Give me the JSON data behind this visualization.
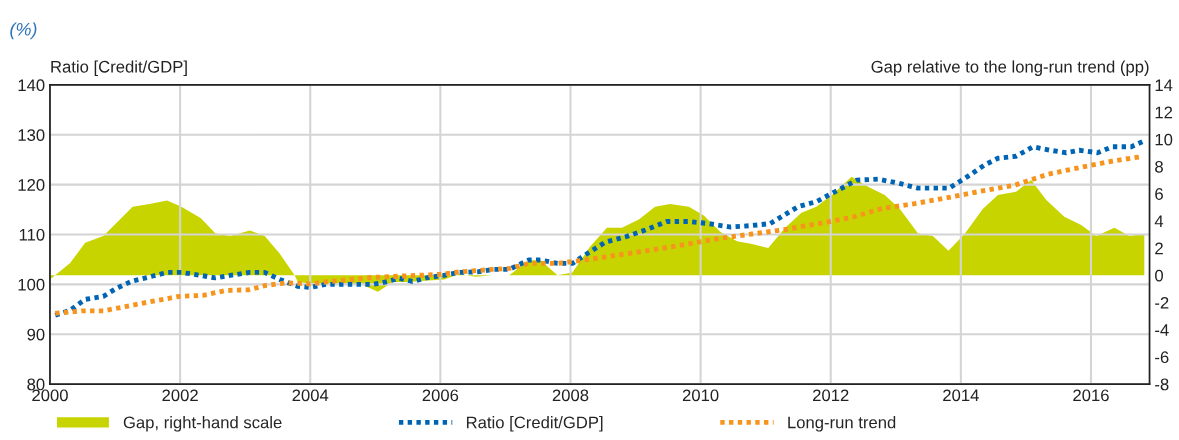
{
  "chart_data": {
    "type": "line",
    "title": "(%)",
    "ylabel": "Ratio [Credit/GDP]",
    "y2label": "Gap relative to the long-run trend (pp)",
    "xlim": [
      2000,
      2016.9
    ],
    "xticks": [
      2000,
      2002,
      2004,
      2006,
      2008,
      2010,
      2012,
      2014,
      2016
    ],
    "ylim": [
      80,
      140
    ],
    "yticks": [
      80,
      90,
      100,
      110,
      120,
      130,
      140
    ],
    "y2lim": [
      -8,
      14
    ],
    "y2ticks": [
      -8,
      -6,
      -4,
      -2,
      0,
      2,
      4,
      6,
      8,
      10,
      12,
      14
    ],
    "grid": true,
    "legend": "bottom",
    "series": [
      {
        "name": "Gap, right-hand scale",
        "type": "area",
        "axis": "y2",
        "color": "#c8d400",
        "x": [
          2000.0,
          2000.31,
          2000.54,
          2000.82,
          2001.27,
          2001.53,
          2001.8,
          2002.02,
          2002.32,
          2002.54,
          2002.77,
          2003.07,
          2003.3,
          2003.53,
          2003.76,
          2003.81,
          2004.0,
          2004.5,
          2004.8,
          2005.04,
          2005.27,
          2005.52,
          2005.75,
          2006.06,
          2006.29,
          2006.54,
          2006.8,
          2007.06,
          2007.36,
          2007.54,
          2007.8,
          2008.03,
          2008.3,
          2008.56,
          2008.79,
          2009.05,
          2009.3,
          2009.53,
          2009.82,
          2010.05,
          2010.3,
          2010.56,
          2010.79,
          2011.04,
          2011.3,
          2011.55,
          2011.78,
          2012.04,
          2012.32,
          2012.58,
          2012.83,
          2013.06,
          2013.34,
          2013.57,
          2013.81,
          2014.06,
          2014.34,
          2014.57,
          2014.85,
          2015.08,
          2015.31,
          2015.59,
          2015.85,
          2016.08,
          2016.36,
          2016.59,
          2016.82
        ],
        "values": [
          -0.3,
          0.9,
          2.4,
          2.9,
          5.05,
          5.25,
          5.5,
          5.05,
          4.2,
          3.1,
          2.9,
          3.3,
          2.9,
          1.6,
          0.0,
          -0.5,
          -0.6,
          -0.6,
          -0.7,
          -1.2,
          -0.5,
          -0.5,
          -0.4,
          -0.3,
          0.1,
          -0.1,
          0.0,
          0.0,
          1.1,
          1.1,
          0.0,
          0.2,
          2.1,
          3.5,
          3.5,
          4.1,
          5.05,
          5.25,
          5.05,
          4.4,
          3.2,
          2.5,
          2.3,
          2.0,
          3.5,
          4.6,
          5.05,
          6.0,
          7.25,
          6.5,
          5.9,
          4.9,
          3.1,
          2.9,
          1.8,
          3.05,
          4.9,
          5.9,
          6.15,
          7.0,
          5.55,
          4.3,
          3.7,
          2.9,
          3.5,
          2.9,
          3.05
        ]
      },
      {
        "name": "Ratio [Credit/GDP]",
        "line_style": "dotted",
        "color": "#0064b4",
        "x": [
          2000.08,
          2000.31,
          2000.54,
          2000.82,
          2001.02,
          2001.27,
          2001.53,
          2001.8,
          2002.02,
          2002.32,
          2002.54,
          2002.77,
          2003.07,
          2003.3,
          2003.53,
          2003.81,
          2004.0,
          2004.24,
          2004.55,
          2004.96,
          2005.1,
          2005.37,
          2005.57,
          2005.82,
          2006.05,
          2006.29,
          2006.57,
          2006.8,
          2007.06,
          2007.36,
          2007.54,
          2007.8,
          2008.03,
          2008.26,
          2008.54,
          2008.84,
          2009.15,
          2009.48,
          2009.82,
          2010.12,
          2010.46,
          2010.79,
          2011.07,
          2011.5,
          2011.78,
          2012.07,
          2012.4,
          2012.73,
          2013.04,
          2013.34,
          2013.82,
          2014.1,
          2014.36,
          2014.57,
          2014.85,
          2015.11,
          2015.37,
          2015.62,
          2015.82,
          2016.1,
          2016.33,
          2016.62,
          2016.79
        ],
        "values": [
          93.8,
          94.8,
          97.0,
          97.6,
          99.2,
          100.7,
          101.5,
          102.4,
          102.4,
          101.8,
          101.3,
          101.8,
          102.4,
          102.4,
          101.0,
          99.6,
          99.4,
          100.0,
          100.0,
          100.0,
          100.3,
          101.2,
          100.6,
          101.4,
          101.8,
          102.4,
          102.5,
          103.0,
          103.0,
          104.9,
          104.9,
          104.2,
          104.2,
          106.2,
          108.5,
          109.5,
          110.9,
          112.6,
          112.6,
          112.2,
          111.5,
          111.8,
          112.2,
          115.6,
          116.6,
          118.6,
          120.9,
          121.1,
          120.3,
          119.3,
          119.3,
          121.6,
          123.9,
          125.3,
          125.7,
          127.6,
          126.9,
          126.4,
          126.9,
          126.4,
          127.6,
          127.6,
          128.6
        ]
      },
      {
        "name": "Long-run trend",
        "line_style": "dotted",
        "color": "#f7941d",
        "x": [
          2000.08,
          2000.5,
          2000.82,
          2001.18,
          2001.53,
          2001.99,
          2002.35,
          2002.71,
          2003.05,
          2003.32,
          2003.63,
          2004.0,
          2004.31,
          2004.96,
          2005.62,
          2005.98,
          2006.29,
          2006.8,
          2007.06,
          2007.36,
          2007.8,
          2008.23,
          2008.74,
          2009.25,
          2009.77,
          2010.28,
          2010.79,
          2011.3,
          2011.81,
          2012.32,
          2012.78,
          2013.29,
          2013.8,
          2014.31,
          2014.83,
          2015.34,
          2015.85,
          2016.36,
          2016.77
        ],
        "values": [
          94.2,
          94.7,
          94.7,
          95.6,
          96.5,
          97.6,
          97.8,
          98.8,
          98.9,
          99.8,
          100.3,
          100.1,
          100.6,
          101.4,
          101.8,
          102.0,
          102.5,
          103.0,
          103.2,
          104.2,
          104.2,
          104.9,
          105.9,
          106.9,
          108.0,
          109.2,
          110.1,
          111.0,
          112.2,
          113.4,
          115.2,
          116.2,
          117.4,
          118.7,
          119.9,
          122.1,
          123.5,
          124.8,
          125.6
        ]
      }
    ]
  }
}
